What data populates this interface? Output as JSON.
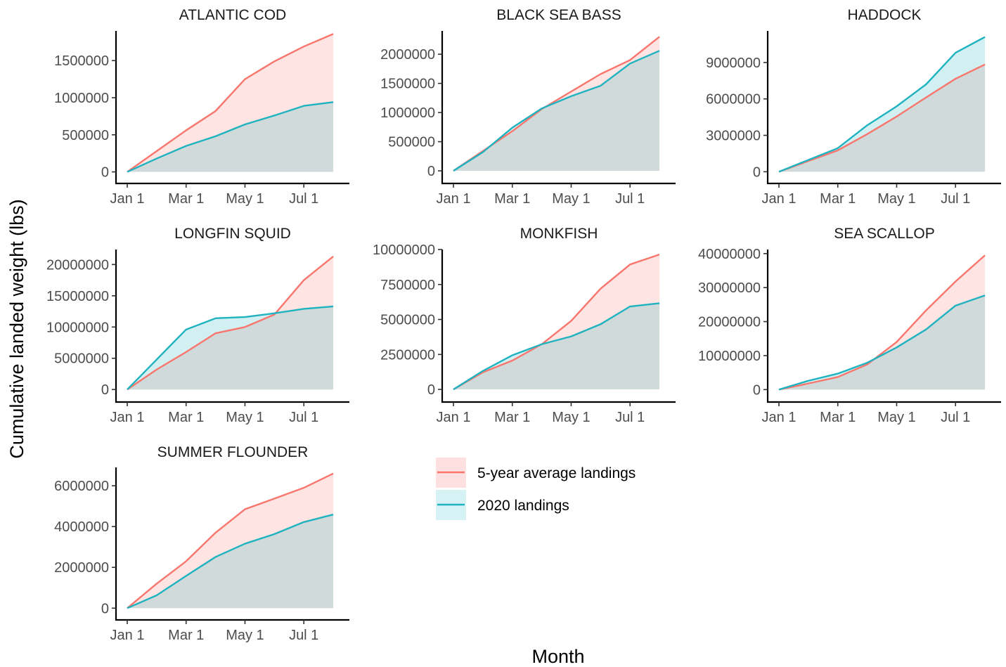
{
  "colors": {
    "avg": "#F8766D",
    "y2020": "#1FB3C0"
  },
  "axis_titles": {
    "x": "Month",
    "y": "Cumulative landed weight (lbs)"
  },
  "legend": {
    "avg_label": "5-year average landings",
    "y2020_label": "2020 landings"
  },
  "chart_data": [
    {
      "type": "area",
      "title": "ATLANTIC COD",
      "x": [
        0,
        1,
        2,
        3,
        4,
        5,
        6,
        7
      ],
      "xlim": [
        0,
        7.5
      ],
      "xticks": [
        0,
        2,
        4,
        6
      ],
      "xticklabels": [
        "Jan 1",
        "Mar 1",
        "May 1",
        "Jul 1"
      ],
      "yticks": [
        0,
        500000,
        1000000,
        1500000
      ],
      "yticklabels": [
        "0",
        "500000",
        "1000000",
        "1500000"
      ],
      "ylim": [
        -80000,
        1900000
      ],
      "series": [
        {
          "name": "5-year average landings",
          "values": [
            0,
            280000,
            560000,
            820000,
            1250000,
            1490000,
            1690000,
            1860000
          ]
        },
        {
          "name": "2020 landings",
          "values": [
            0,
            180000,
            350000,
            480000,
            640000,
            760000,
            890000,
            940000
          ]
        }
      ]
    },
    {
      "type": "area",
      "title": "BLACK SEA BASS",
      "x": [
        0,
        1,
        2,
        3,
        4,
        5,
        6,
        7
      ],
      "xlim": [
        0,
        7.5
      ],
      "xticks": [
        0,
        2,
        4,
        6
      ],
      "xticklabels": [
        "Jan 1",
        "Mar 1",
        "May 1",
        "Jul 1"
      ],
      "yticks": [
        0,
        500000,
        1000000,
        1500000,
        2000000
      ],
      "yticklabels": [
        "0",
        "500000",
        "1000000",
        "1500000",
        "2000000"
      ],
      "ylim": [
        -120000,
        2400000
      ],
      "series": [
        {
          "name": "5-year average landings",
          "values": [
            0,
            340000,
            680000,
            1060000,
            1360000,
            1660000,
            1900000,
            2300000
          ]
        },
        {
          "name": "2020 landings",
          "values": [
            0,
            320000,
            740000,
            1070000,
            1280000,
            1460000,
            1840000,
            2060000
          ]
        }
      ]
    },
    {
      "type": "area",
      "title": "HADDOCK",
      "x": [
        0,
        1,
        2,
        3,
        4,
        5,
        6,
        7
      ],
      "xlim": [
        0,
        7.5
      ],
      "xticks": [
        0,
        2,
        4,
        6
      ],
      "xticklabels": [
        "Jan 1",
        "Mar 1",
        "May 1",
        "Jul 1"
      ],
      "yticks": [
        0,
        3000000,
        6000000,
        9000000
      ],
      "yticklabels": [
        "0",
        "3000000",
        "6000000",
        "9000000"
      ],
      "ylim": [
        -500000,
        11600000
      ],
      "series": [
        {
          "name": "5-year average landings",
          "values": [
            0,
            880000,
            1760000,
            3100000,
            4550000,
            6120000,
            7660000,
            8840000
          ]
        },
        {
          "name": "2020 landings",
          "values": [
            0,
            970000,
            1940000,
            3830000,
            5390000,
            7200000,
            9800000,
            11100000
          ]
        }
      ]
    },
    {
      "type": "area",
      "title": "LONGFIN SQUID",
      "x": [
        0,
        1,
        2,
        3,
        4,
        5,
        6,
        7
      ],
      "xlim": [
        0,
        7.5
      ],
      "xticks": [
        0,
        2,
        4,
        6
      ],
      "xticklabels": [
        "Jan 1",
        "Mar 1",
        "May 1",
        "Jul 1"
      ],
      "yticks": [
        0,
        5000000,
        10000000,
        15000000,
        20000000
      ],
      "yticklabels": [
        "0",
        "5000000",
        "10000000",
        "15000000",
        "20000000"
      ],
      "ylim": [
        -1100000,
        22400000
      ],
      "series": [
        {
          "name": "5-year average landings",
          "values": [
            0,
            3200000,
            6000000,
            9000000,
            10000000,
            12000000,
            17500000,
            21300000
          ]
        },
        {
          "name": "2020 landings",
          "values": [
            0,
            4800000,
            9600000,
            11400000,
            11600000,
            12200000,
            12900000,
            13300000
          ]
        }
      ]
    },
    {
      "type": "area",
      "title": "MONKFISH",
      "x": [
        0,
        1,
        2,
        3,
        4,
        5,
        6,
        7
      ],
      "xlim": [
        0,
        7.5
      ],
      "xticks": [
        0,
        2,
        4,
        6
      ],
      "xticklabels": [
        "Jan 1",
        "Mar 1",
        "May 1",
        "Jul 1"
      ],
      "yticks": [
        0,
        2500000,
        5000000,
        7500000,
        10000000
      ],
      "yticklabels": [
        "0",
        "2500000",
        "5000000",
        "7500000",
        "10000000"
      ],
      "ylim": [
        -500000,
        10000000
      ],
      "series": [
        {
          "name": "5-year average landings",
          "values": [
            0,
            1220000,
            2060000,
            3230000,
            4900000,
            7200000,
            8930000,
            9640000
          ]
        },
        {
          "name": "2020 landings",
          "values": [
            0,
            1320000,
            2440000,
            3230000,
            3790000,
            4660000,
            5930000,
            6160000
          ]
        }
      ]
    },
    {
      "type": "area",
      "title": "SEA SCALLOP",
      "x": [
        0,
        1,
        2,
        3,
        4,
        5,
        6,
        7
      ],
      "xlim": [
        0,
        7.5
      ],
      "xticks": [
        0,
        2,
        4,
        6
      ],
      "xticklabels": [
        "Jan 1",
        "Mar 1",
        "May 1",
        "Jul 1"
      ],
      "yticks": [
        0,
        10000000,
        20000000,
        30000000,
        40000000
      ],
      "yticklabels": [
        "0",
        "10000000",
        "20000000",
        "30000000",
        "40000000"
      ],
      "ylim": [
        -2000000,
        41200000
      ],
      "series": [
        {
          "name": "5-year average landings",
          "values": [
            0,
            1800000,
            3700000,
            7400000,
            14000000,
            23300000,
            31800000,
            39500000
          ]
        },
        {
          "name": "2020 landings",
          "values": [
            0,
            2600000,
            4700000,
            7900000,
            12400000,
            17700000,
            24700000,
            27700000
          ]
        }
      ]
    },
    {
      "type": "area",
      "title": "SUMMER FLOUNDER",
      "x": [
        0,
        1,
        2,
        3,
        4,
        5,
        6,
        7
      ],
      "xlim": [
        0,
        7.5
      ],
      "xticks": [
        0,
        2,
        4,
        6
      ],
      "xticklabels": [
        "Jan 1",
        "Mar 1",
        "May 1",
        "Jul 1"
      ],
      "yticks": [
        0,
        2000000,
        4000000,
        6000000
      ],
      "yticklabels": [
        "0",
        "2000000",
        "4000000",
        "6000000"
      ],
      "ylim": [
        -300000,
        6900000
      ],
      "series": [
        {
          "name": "5-year average landings",
          "values": [
            0,
            1200000,
            2300000,
            3700000,
            4850000,
            5370000,
            5900000,
            6600000
          ]
        },
        {
          "name": "2020 landings",
          "values": [
            0,
            630000,
            1580000,
            2510000,
            3160000,
            3630000,
            4220000,
            4590000
          ]
        }
      ]
    }
  ]
}
